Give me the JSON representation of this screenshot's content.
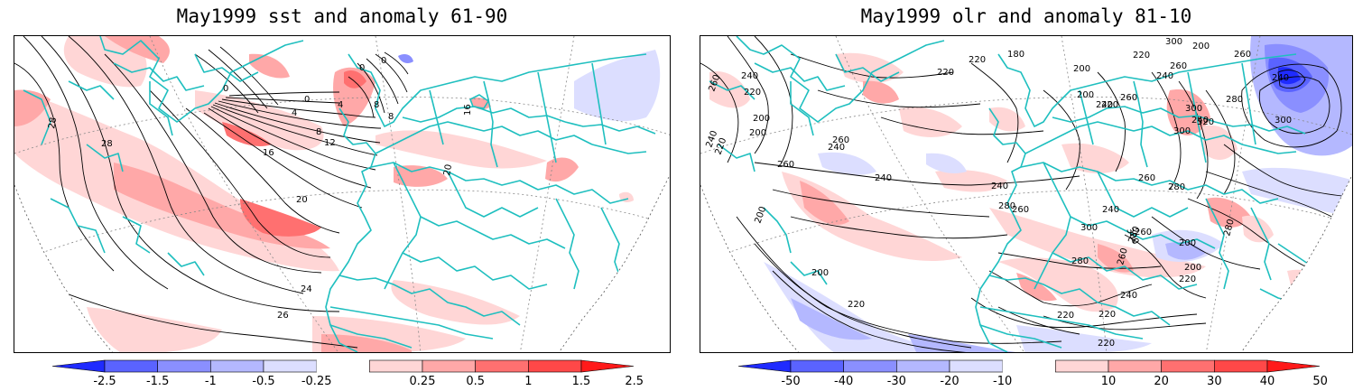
{
  "panels": [
    {
      "title": "May1999 sst and anomaly 61-90",
      "contour_labels": [
        "28",
        "28",
        "24",
        "26",
        "20",
        "16",
        "12",
        "8",
        "4",
        "0",
        "0",
        "0",
        "0",
        "8",
        "8",
        "16",
        "20",
        "4"
      ],
      "colorbar": {
        "ticks": [
          "-2.5",
          "-1.5",
          "-1",
          "-0.5",
          "-0.25",
          "0.25",
          "0.5",
          "1",
          "1.5",
          "2.5"
        ],
        "colors": [
          "#1f2bff",
          "#5a63ff",
          "#8a8fff",
          "#b4b8ff",
          "#dcdeff",
          "#ffffff",
          "#ffd6d6",
          "#ffa8a8",
          "#ff7070",
          "#ff4848",
          "#ff1a1a"
        ]
      }
    },
    {
      "title": "May1999 olr and anomaly 81-10",
      "contour_labels": [
        "260",
        "260",
        "240",
        "220",
        "200",
        "240",
        "220",
        "200",
        "180",
        "200",
        "220",
        "220",
        "200",
        "300",
        "200",
        "260",
        "240",
        "280",
        "300",
        "320",
        "300",
        "240",
        "260",
        "240",
        "260",
        "240",
        "220",
        "220",
        "240",
        "240",
        "260",
        "280",
        "300",
        "300",
        "280",
        "260",
        "240",
        "300",
        "280",
        "260",
        "240",
        "220",
        "200",
        "220",
        "240",
        "220",
        "220",
        "260",
        "200",
        "200",
        "220",
        "260",
        "280",
        "280",
        "200"
      ],
      "colorbar": {
        "ticks": [
          "-50",
          "-40",
          "-30",
          "-20",
          "-10",
          "10",
          "20",
          "30",
          "40",
          "50"
        ],
        "colors": [
          "#1f2bff",
          "#5a63ff",
          "#8a8fff",
          "#b4b8ff",
          "#dcdeff",
          "#ffffff",
          "#ffd6d6",
          "#ffa8a8",
          "#ff7070",
          "#ff4848",
          "#ff1a1a"
        ]
      }
    }
  ]
}
